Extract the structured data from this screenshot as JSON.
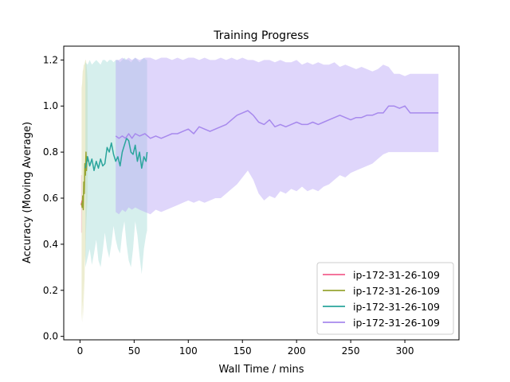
{
  "chart_data": {
    "type": "line",
    "title": "Training Progress",
    "xlabel": "Wall Time / mins",
    "ylabel": "Accuracy (Moving Average)",
    "xlim": [
      -15,
      350
    ],
    "ylim": [
      -0.015,
      1.26
    ],
    "xticks": [
      0,
      50,
      100,
      150,
      200,
      250,
      300
    ],
    "yticks": [
      0.0,
      0.2,
      0.4,
      0.6,
      0.8,
      1.0,
      1.2
    ],
    "grid": false,
    "legend_position": "lower-right",
    "series": [
      {
        "name": "ip-172-31-26-109",
        "color": "#f3608e",
        "band_color": "#f3a8c0",
        "x": [
          1.0,
          1.5,
          2.0
        ],
        "y": [
          0.57,
          0.58,
          0.59
        ],
        "lower": [
          0.45,
          0.45,
          0.45
        ],
        "upper": [
          0.7,
          0.7,
          0.7
        ]
      },
      {
        "name": "ip-172-31-26-109",
        "color": "#97a433",
        "band_color": "#d8d79a",
        "x": [
          1.5,
          2.0,
          2.5,
          3.0,
          3.5,
          4.0,
          4.5,
          5.0,
          5.5,
          6.0,
          6.5,
          7.0
        ],
        "y": [
          0.58,
          0.56,
          0.61,
          0.55,
          0.67,
          0.62,
          0.75,
          0.7,
          0.8,
          0.72,
          0.78,
          0.76
        ],
        "lower": [
          0.1,
          0.06,
          0.15,
          0.08,
          0.25,
          0.15,
          0.35,
          0.3,
          0.45,
          0.5,
          0.55,
          0.6
        ],
        "upper": [
          1.08,
          1.1,
          1.15,
          1.16,
          1.18,
          1.18,
          1.19,
          1.2,
          1.2,
          1.18,
          1.15,
          1.1
        ]
      },
      {
        "name": "ip-172-31-26-109",
        "color": "#2aa59c",
        "band_color": "#a3dcd8",
        "x": [
          5,
          7,
          9,
          11,
          13,
          15,
          17,
          19,
          21,
          23,
          25,
          27,
          29,
          31,
          33,
          35,
          37,
          39,
          41,
          43,
          45,
          47,
          49,
          51,
          53,
          55,
          57,
          59,
          61,
          62
        ],
        "y": [
          0.73,
          0.78,
          0.74,
          0.77,
          0.72,
          0.76,
          0.73,
          0.77,
          0.74,
          0.75,
          0.82,
          0.8,
          0.84,
          0.79,
          0.76,
          0.78,
          0.74,
          0.8,
          0.83,
          0.86,
          0.85,
          0.8,
          0.79,
          0.83,
          0.76,
          0.8,
          0.73,
          0.78,
          0.76,
          0.8
        ],
        "lower": [
          0.3,
          0.34,
          0.38,
          0.31,
          0.36,
          0.42,
          0.33,
          0.3,
          0.37,
          0.45,
          0.38,
          0.34,
          0.4,
          0.48,
          0.42,
          0.38,
          0.36,
          0.45,
          0.5,
          0.4,
          0.33,
          0.3,
          0.38,
          0.5,
          0.44,
          0.35,
          0.27,
          0.38,
          0.44,
          0.46
        ],
        "upper": [
          1.19,
          1.18,
          1.2,
          1.18,
          1.19,
          1.2,
          1.19,
          1.18,
          1.2,
          1.2,
          1.19,
          1.2,
          1.2,
          1.19,
          1.2,
          1.2,
          1.19,
          1.2,
          1.21,
          1.2,
          1.2,
          1.19,
          1.2,
          1.21,
          1.2,
          1.19,
          1.2,
          1.21,
          1.2,
          1.2
        ]
      },
      {
        "name": "ip-172-31-26-109",
        "color": "#a789ed",
        "band_color": "#b9a4f7",
        "x": [
          33,
          36,
          39,
          42,
          45,
          48,
          51,
          55,
          60,
          65,
          70,
          75,
          80,
          85,
          90,
          95,
          100,
          105,
          110,
          115,
          120,
          125,
          130,
          135,
          140,
          145,
          150,
          155,
          160,
          165,
          170,
          175,
          180,
          185,
          190,
          195,
          200,
          205,
          210,
          215,
          220,
          225,
          230,
          235,
          240,
          245,
          250,
          255,
          260,
          265,
          270,
          275,
          280,
          285,
          290,
          295,
          300,
          305,
          310,
          315,
          320,
          325,
          331
        ],
        "y": [
          0.87,
          0.86,
          0.87,
          0.86,
          0.88,
          0.86,
          0.88,
          0.87,
          0.88,
          0.86,
          0.87,
          0.86,
          0.87,
          0.88,
          0.88,
          0.89,
          0.9,
          0.88,
          0.91,
          0.9,
          0.89,
          0.9,
          0.91,
          0.92,
          0.94,
          0.96,
          0.97,
          0.98,
          0.96,
          0.93,
          0.92,
          0.94,
          0.91,
          0.92,
          0.91,
          0.92,
          0.93,
          0.92,
          0.92,
          0.93,
          0.92,
          0.93,
          0.94,
          0.95,
          0.96,
          0.95,
          0.94,
          0.95,
          0.95,
          0.96,
          0.96,
          0.97,
          0.97,
          1.0,
          1.0,
          0.99,
          1.0,
          0.97,
          0.97,
          0.97,
          0.97,
          0.97,
          0.97
        ],
        "lower": [
          0.54,
          0.53,
          0.55,
          0.54,
          0.56,
          0.55,
          0.56,
          0.55,
          0.54,
          0.53,
          0.55,
          0.54,
          0.55,
          0.56,
          0.57,
          0.58,
          0.59,
          0.58,
          0.59,
          0.58,
          0.59,
          0.6,
          0.6,
          0.62,
          0.64,
          0.66,
          0.69,
          0.72,
          0.68,
          0.62,
          0.59,
          0.61,
          0.6,
          0.63,
          0.62,
          0.64,
          0.63,
          0.65,
          0.63,
          0.64,
          0.63,
          0.65,
          0.66,
          0.68,
          0.7,
          0.69,
          0.71,
          0.72,
          0.73,
          0.74,
          0.75,
          0.77,
          0.79,
          0.8,
          0.8,
          0.8,
          0.8,
          0.8,
          0.8,
          0.8,
          0.8,
          0.8,
          0.8
        ],
        "upper": [
          1.2,
          1.2,
          1.21,
          1.2,
          1.21,
          1.2,
          1.21,
          1.2,
          1.21,
          1.21,
          1.2,
          1.21,
          1.21,
          1.2,
          1.21,
          1.2,
          1.21,
          1.21,
          1.2,
          1.21,
          1.2,
          1.2,
          1.21,
          1.2,
          1.21,
          1.2,
          1.21,
          1.2,
          1.2,
          1.19,
          1.2,
          1.2,
          1.19,
          1.2,
          1.19,
          1.19,
          1.2,
          1.18,
          1.19,
          1.18,
          1.19,
          1.18,
          1.18,
          1.19,
          1.17,
          1.18,
          1.17,
          1.16,
          1.17,
          1.16,
          1.15,
          1.16,
          1.18,
          1.17,
          1.14,
          1.14,
          1.13,
          1.14,
          1.14,
          1.14,
          1.14,
          1.14,
          1.14
        ]
      }
    ]
  }
}
